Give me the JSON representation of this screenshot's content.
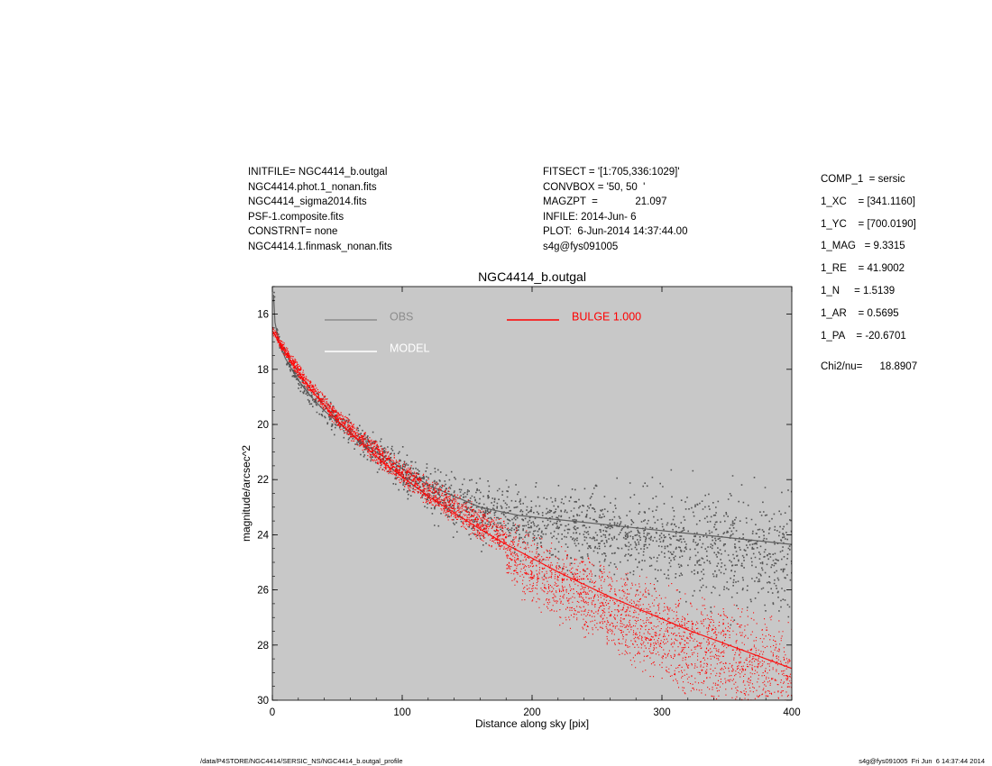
{
  "header": {
    "left_lines": [
      "INITFILE= NGC4414_b.outgal",
      "NGC4414.phot.1_nonan.fits",
      "NGC4414_sigma2014.fits",
      "PSF-1.composite.fits",
      "CONSTRNT= none",
      "NGC4414.1.finmask_nonan.fits"
    ],
    "mid_lines": [
      "FITSECT = '[1:705,336:1029]'",
      "CONVBOX = '50, 50  '",
      "MAGZPT  =             21.097",
      "INFILE: 2014-Jun- 6",
      "PLOT:  6-Jun-2014 14:37:44.00",
      "s4g@fys091005"
    ],
    "params": [
      "COMP_1  = sersic",
      "1_XC    = [341.1160]",
      "1_YC    = [700.0190]",
      "1_MAG   = 9.3315",
      "1_RE    = 41.9002",
      "1_N     = 1.5139",
      "1_AR    = 0.5695",
      "1_PA    = -20.6701"
    ],
    "chi": "Chi2/nu=      18.8907"
  },
  "footer": {
    "left": "/data/P4STORE/NGC4414/SERSIC_NS/NGC4414_b.outgal_profile",
    "right": "s4g@fys091005  Fri Jun  6 14:37:44 2014"
  },
  "chart_data": {
    "type": "scatter",
    "title": "NGC4414_b.outgal",
    "xlabel": "Distance along sky [pix]",
    "ylabel": "magnitude/arcsec^2",
    "xlim": [
      0,
      400
    ],
    "ylim": [
      30,
      15
    ],
    "y_inverted": true,
    "x_ticks": [
      0,
      100,
      200,
      300,
      400
    ],
    "y_ticks": [
      16,
      18,
      20,
      22,
      24,
      26,
      28,
      30
    ],
    "grid": false,
    "legend": [
      {
        "label": "OBS",
        "color": "#8c8c8c"
      },
      {
        "label": "MODEL",
        "color": "#ffffff"
      },
      {
        "label": "BULGE  1.000",
        "color": "#ff0000"
      }
    ],
    "series": [
      {
        "name": "OBS",
        "color": "#555555",
        "x": [
          1,
          2,
          5,
          10,
          20,
          30,
          40,
          50,
          60,
          70,
          80,
          90,
          100,
          110,
          120,
          130,
          140,
          150,
          160,
          170,
          180,
          190,
          200,
          220,
          240,
          260,
          280,
          300,
          320,
          340,
          360,
          380,
          400
        ],
        "y": [
          15.3,
          16.3,
          17.0,
          17.6,
          18.4,
          19.0,
          19.5,
          19.9,
          20.3,
          20.7,
          21.0,
          21.3,
          21.6,
          21.9,
          22.2,
          22.4,
          22.6,
          22.8,
          23.0,
          23.1,
          23.2,
          23.3,
          23.35,
          23.45,
          23.55,
          23.65,
          23.75,
          23.85,
          23.95,
          24.05,
          24.15,
          24.25,
          24.35
        ]
      },
      {
        "name": "BULGE  1.000",
        "color": "#ff0000",
        "x": [
          0,
          5,
          10,
          20,
          30,
          40,
          50,
          60,
          70,
          80,
          90,
          100,
          120,
          140,
          160,
          180,
          200,
          220,
          240,
          260,
          280,
          300,
          320,
          340,
          360,
          380,
          400
        ],
        "y": [
          16.6,
          17.0,
          17.4,
          18.1,
          18.75,
          19.3,
          19.85,
          20.3,
          20.75,
          21.15,
          21.55,
          21.9,
          22.6,
          23.2,
          23.8,
          24.35,
          24.85,
          25.35,
          25.8,
          26.25,
          26.65,
          27.05,
          27.45,
          27.8,
          28.15,
          28.5,
          28.85
        ]
      }
    ]
  }
}
